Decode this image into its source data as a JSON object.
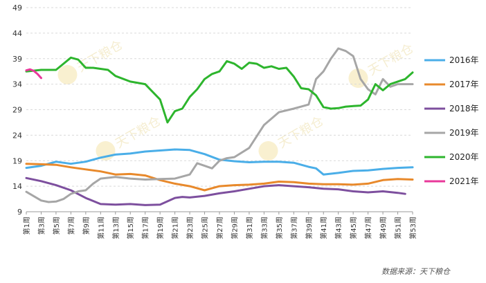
{
  "chart_data": {
    "type": "line",
    "title": "",
    "xlabel": "",
    "ylabel": "",
    "ylim": [
      9,
      49
    ],
    "yticks": [
      9,
      14,
      19,
      24,
      29,
      34,
      39,
      44,
      49
    ],
    "ytick_labels": [
      "9",
      "14",
      "19",
      "24",
      "29",
      "34",
      "39",
      "44",
      "49"
    ],
    "x_range": [
      1,
      53
    ],
    "xtick_weeks": [
      1,
      3,
      5,
      7,
      9,
      11,
      13,
      15,
      17,
      19,
      21,
      23,
      25,
      27,
      29,
      31,
      33,
      35,
      37,
      39,
      41,
      43,
      45,
      47,
      49,
      51,
      53
    ],
    "xtick_labels": [
      "第1周",
      "第3周",
      "第5周",
      "第7周",
      "第9周",
      "第11周",
      "第13周",
      "第15周",
      "第17周",
      "第19周",
      "第21周",
      "第23周",
      "第25周",
      "第27周",
      "第29周",
      "第31周",
      "第33周",
      "第35周",
      "第37周",
      "第39周",
      "第41周",
      "第43周",
      "第45周",
      "第47周",
      "第49周",
      "第51周",
      "第53周"
    ],
    "grid": true,
    "legend_position": "right",
    "series": [
      {
        "name": "2016年",
        "color": "#4aaee8",
        "x": [
          1,
          3,
          5,
          7,
          9,
          11,
          13,
          15,
          17,
          19,
          21,
          23,
          25,
          27,
          29,
          31,
          33,
          35,
          37,
          39,
          40,
          41,
          43,
          45,
          47,
          49,
          51,
          53
        ],
        "values": [
          17.6,
          18.0,
          18.8,
          18.4,
          18.8,
          19.6,
          20.2,
          20.4,
          20.8,
          21.0,
          21.2,
          21.1,
          20.3,
          19.2,
          18.9,
          18.7,
          18.8,
          18.8,
          18.6,
          17.8,
          17.5,
          16.3,
          16.6,
          17.0,
          17.1,
          17.4,
          17.6,
          17.7
        ]
      },
      {
        "name": "2017年",
        "color": "#e8892b",
        "x": [
          1,
          3,
          5,
          7,
          9,
          11,
          13,
          15,
          17,
          19,
          21,
          23,
          25,
          27,
          29,
          31,
          33,
          35,
          37,
          39,
          41,
          43,
          45,
          47,
          49,
          51,
          53
        ],
        "values": [
          18.4,
          18.3,
          18.2,
          17.7,
          17.3,
          16.9,
          16.3,
          16.4,
          16.1,
          15.2,
          14.5,
          14.0,
          13.2,
          14.0,
          14.2,
          14.3,
          14.5,
          14.9,
          14.8,
          14.5,
          14.4,
          14.4,
          14.3,
          14.5,
          15.2,
          15.4,
          15.3
        ]
      },
      {
        "name": "2018年",
        "color": "#7d4f9e",
        "x": [
          1,
          3,
          5,
          7,
          9,
          11,
          13,
          15,
          17,
          19,
          21,
          22,
          23,
          25,
          27,
          29,
          31,
          33,
          35,
          37,
          39,
          41,
          43,
          45,
          47,
          49,
          51,
          52
        ],
        "values": [
          15.6,
          15.0,
          14.2,
          13.2,
          11.7,
          10.5,
          10.4,
          10.5,
          10.3,
          10.4,
          11.7,
          11.9,
          11.8,
          12.1,
          12.6,
          13.0,
          13.5,
          14.0,
          14.2,
          14.0,
          13.8,
          13.5,
          13.4,
          13.0,
          12.8,
          13.0,
          12.7,
          12.5
        ]
      },
      {
        "name": "2019年",
        "color": "#a6a6a6",
        "x": [
          1,
          3,
          4,
          5,
          6,
          7,
          8,
          9,
          10,
          11,
          13,
          15,
          17,
          19,
          21,
          23,
          24,
          25,
          26,
          27,
          28,
          29,
          31,
          33,
          35,
          37,
          39,
          40,
          41,
          42,
          43,
          44,
          45,
          46,
          47,
          48,
          49,
          50,
          51,
          53
        ],
        "values": [
          12.9,
          11.2,
          10.9,
          11.0,
          11.5,
          12.5,
          13.0,
          13.2,
          14.5,
          15.5,
          15.8,
          15.5,
          15.3,
          15.4,
          15.5,
          16.3,
          18.5,
          18.0,
          17.5,
          19.0,
          19.5,
          19.7,
          21.5,
          26.0,
          28.5,
          29.2,
          30.0,
          35.0,
          36.5,
          39.0,
          41.0,
          40.5,
          39.5,
          35.0,
          33.0,
          32.0,
          35.0,
          33.5,
          34.0,
          34.0
        ]
      },
      {
        "name": "2020年",
        "color": "#2db52d",
        "x": [
          1,
          3,
          5,
          6,
          7,
          8,
          9,
          10,
          11,
          12,
          13,
          15,
          17,
          18,
          19,
          20,
          21,
          22,
          23,
          24,
          25,
          26,
          27,
          28,
          29,
          30,
          31,
          32,
          33,
          34,
          35,
          36,
          37,
          38,
          39,
          40,
          41,
          42,
          43,
          44,
          45,
          46,
          47,
          48,
          49,
          50,
          51,
          52,
          53
        ],
        "values": [
          36.5,
          36.8,
          36.8,
          38.0,
          39.2,
          38.8,
          37.2,
          37.2,
          37.0,
          36.8,
          35.6,
          34.5,
          34.0,
          32.5,
          31.0,
          26.5,
          28.7,
          29.2,
          31.5,
          33.0,
          35.0,
          36.0,
          36.5,
          38.5,
          38.0,
          37.0,
          38.2,
          38.0,
          37.2,
          37.5,
          37.0,
          37.2,
          35.5,
          33.2,
          33.0,
          31.8,
          29.5,
          29.2,
          29.3,
          29.6,
          29.7,
          29.8,
          31.0,
          34.0,
          32.8,
          34.0,
          34.5,
          35.0,
          36.3
        ]
      },
      {
        "name": "2021年",
        "color": "#e8389a",
        "x": [
          1,
          1.5,
          2,
          2.5,
          3
        ],
        "values": [
          36.7,
          36.9,
          36.6,
          36.0,
          35.2
        ]
      }
    ]
  },
  "watermark_text": "天下粮仓",
  "source_text": "数据来源：天下粮仓"
}
